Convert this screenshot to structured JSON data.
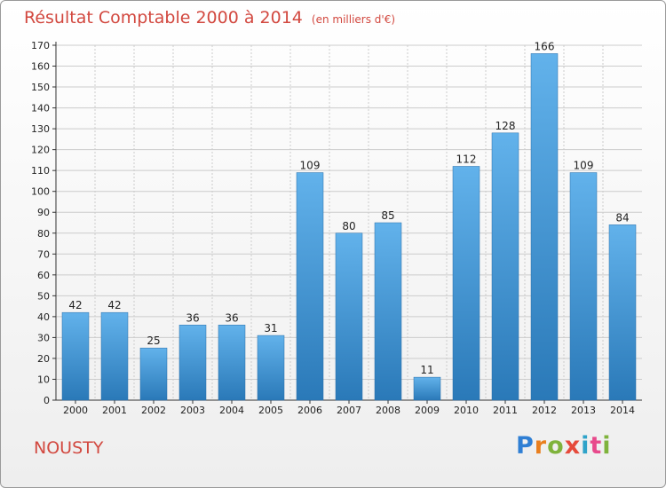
{
  "header": {
    "title": "Résultat Comptable 2000 à 2014",
    "unit": "(en milliers d'€)"
  },
  "footer": {
    "town": "NOUSTY",
    "logo": [
      "P",
      "r",
      "o",
      "x",
      "i",
      "t",
      "i"
    ]
  },
  "colors": {
    "title": "#d2483f",
    "bar_top": "#62b2eb",
    "bar_bottom": "#2a79b8",
    "grid": "#cccccc"
  },
  "chart_data": {
    "type": "bar",
    "categories": [
      "2000",
      "2001",
      "2002",
      "2003",
      "2004",
      "2005",
      "2006",
      "2007",
      "2008",
      "2009",
      "2010",
      "2011",
      "2012",
      "2013",
      "2014"
    ],
    "values": [
      42,
      42,
      25,
      36,
      36,
      31,
      109,
      80,
      85,
      11,
      112,
      128,
      166,
      109,
      84
    ],
    "title": "Résultat Comptable 2000 à 2014",
    "xlabel": "",
    "ylabel": "",
    "ylim": [
      0,
      170
    ],
    "yticks": [
      0,
      10,
      20,
      30,
      40,
      50,
      60,
      70,
      80,
      90,
      100,
      110,
      120,
      130,
      140,
      150,
      160,
      170
    ],
    "grid": true,
    "legend": "none",
    "data_labels": true
  }
}
